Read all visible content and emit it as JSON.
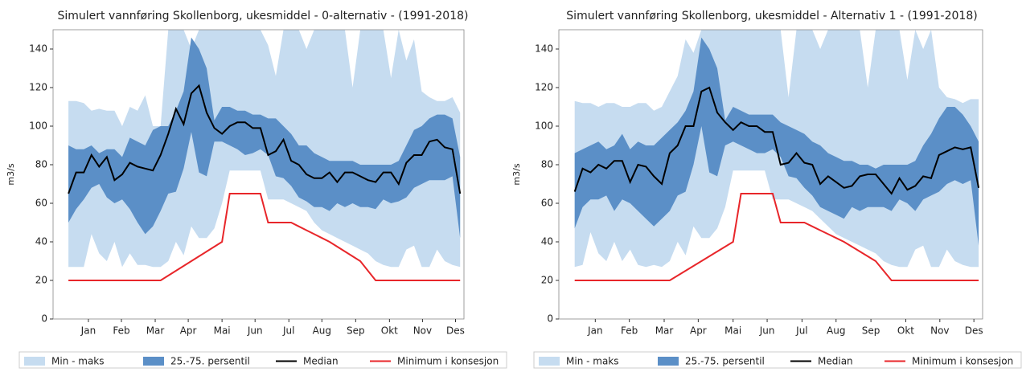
{
  "chart_data": [
    {
      "type": "band-line",
      "title": "Simulert vannføring Skollenborg, ukesmiddel - 0-alternativ - (1991-2018)",
      "y_label": "m3/s",
      "x": [
        1,
        2,
        3,
        4,
        5,
        6,
        7,
        8,
        9,
        10,
        11,
        12,
        13,
        14,
        15,
        16,
        17,
        18,
        19,
        20,
        21,
        22,
        23,
        24,
        25,
        26,
        27,
        28,
        29,
        30,
        31,
        32,
        33,
        34,
        35,
        36,
        37,
        38,
        39,
        40,
        41,
        42,
        43,
        44,
        45,
        46,
        47,
        48,
        49,
        50,
        51,
        52
      ],
      "xlim": [
        -1,
        52.5
      ],
      "ylim": [
        0,
        150
      ],
      "yticks": [
        0,
        20,
        40,
        60,
        80,
        100,
        120,
        140
      ],
      "xticks": [
        {
          "value": 3.6,
          "label": "Jan"
        },
        {
          "value": 7.9,
          "label": "Feb"
        },
        {
          "value": 12.3,
          "label": "Mar"
        },
        {
          "value": 16.6,
          "label": "Apr"
        },
        {
          "value": 21,
          "label": "Mai"
        },
        {
          "value": 25.3,
          "label": "Jun"
        },
        {
          "value": 29.7,
          "label": "Jul"
        },
        {
          "value": 34,
          "label": "Aug"
        },
        {
          "value": 38.4,
          "label": "Sep"
        },
        {
          "value": 42.8,
          "label": "Okt"
        },
        {
          "value": 47.1,
          "label": "Nov"
        },
        {
          "value": 51.4,
          "label": "Des"
        }
      ],
      "series": [
        {
          "name": "Min - maks",
          "type": "band",
          "color": "#c6dcf0",
          "lower": [
            27,
            27,
            27,
            44,
            34,
            30,
            40,
            27,
            34,
            28,
            28,
            27,
            27,
            30,
            40,
            33,
            48,
            42,
            42,
            47,
            60,
            77,
            77,
            77,
            77,
            77,
            62,
            62,
            62,
            60,
            58,
            56,
            50,
            46,
            44,
            42,
            40,
            38,
            36,
            34,
            30,
            28,
            27,
            27,
            36,
            38,
            27,
            27,
            36,
            30,
            28,
            27
          ],
          "upper": [
            113,
            113,
            112,
            108,
            109,
            108,
            108,
            100,
            110,
            108,
            116,
            100,
            100,
            150,
            150,
            150,
            140,
            150,
            150,
            150,
            150,
            150,
            150,
            150,
            150,
            150,
            142,
            126,
            150,
            150,
            150,
            140,
            150,
            150,
            150,
            150,
            150,
            120,
            150,
            150,
            150,
            150,
            125,
            150,
            134,
            145,
            118,
            115,
            113,
            113,
            115,
            107
          ]
        },
        {
          "name": "25.-75. persentil",
          "type": "band",
          "color": "#5b8fc7",
          "lower": [
            50,
            57,
            62,
            68,
            70,
            63,
            60,
            62,
            57,
            50,
            44,
            48,
            56,
            65,
            66,
            78,
            97,
            76,
            74,
            92,
            92,
            90,
            88,
            85,
            86,
            88,
            85,
            74,
            73,
            69,
            63,
            61,
            58,
            58,
            56,
            60,
            58,
            60,
            58,
            58,
            57,
            62,
            60,
            61,
            63,
            68,
            70,
            72,
            72,
            72,
            74,
            42
          ],
          "upper": [
            90,
            88,
            88,
            90,
            86,
            88,
            88,
            84,
            94,
            92,
            90,
            98,
            100,
            100,
            108,
            118,
            146,
            140,
            130,
            103,
            110,
            110,
            108,
            108,
            106,
            106,
            104,
            104,
            100,
            96,
            90,
            90,
            86,
            84,
            82,
            82,
            82,
            82,
            80,
            80,
            80,
            80,
            80,
            82,
            90,
            98,
            100,
            104,
            106,
            106,
            104,
            84
          ]
        },
        {
          "name": "Median",
          "type": "line",
          "color": "#000000",
          "values": [
            65,
            76,
            76,
            85,
            79,
            84,
            72,
            75,
            81,
            79,
            78,
            77,
            85,
            96,
            109,
            101,
            117,
            121,
            107,
            99,
            96,
            100,
            102,
            102,
            99,
            99,
            85,
            87,
            93,
            82,
            80,
            75,
            73,
            73,
            76,
            71,
            76,
            76,
            74,
            72,
            71,
            76,
            76,
            70,
            81,
            85,
            85,
            92,
            93,
            89,
            88,
            65
          ]
        },
        {
          "name": "Minimum i konsesjon",
          "type": "line",
          "color": "#e8262a",
          "values": [
            20,
            20,
            20,
            20,
            20,
            20,
            20,
            20,
            20,
            20,
            20,
            20,
            20,
            22.5,
            25,
            27.5,
            30,
            32.5,
            35,
            37.5,
            40,
            65,
            65,
            65,
            65,
            65,
            50,
            50,
            50,
            50,
            48,
            46,
            44,
            42,
            40,
            37.5,
            35,
            32.5,
            30,
            25,
            20,
            20,
            20,
            20,
            20,
            20,
            20,
            20,
            20,
            20,
            20,
            20
          ]
        }
      ]
    },
    {
      "type": "band-line",
      "title": "Simulert vannføring Skollenborg, ukesmiddel - Alternativ 1 - (1991-2018)",
      "y_label": "m3/s",
      "x": [
        1,
        2,
        3,
        4,
        5,
        6,
        7,
        8,
        9,
        10,
        11,
        12,
        13,
        14,
        15,
        16,
        17,
        18,
        19,
        20,
        21,
        22,
        23,
        24,
        25,
        26,
        27,
        28,
        29,
        30,
        31,
        32,
        33,
        34,
        35,
        36,
        37,
        38,
        39,
        40,
        41,
        42,
        43,
        44,
        45,
        46,
        47,
        48,
        49,
        50,
        51,
        52
      ],
      "xlim": [
        -1,
        52.5
      ],
      "ylim": [
        0,
        150
      ],
      "yticks": [
        0,
        20,
        40,
        60,
        80,
        100,
        120,
        140
      ],
      "xticks": [
        {
          "value": 3.6,
          "label": "Jan"
        },
        {
          "value": 7.9,
          "label": "Feb"
        },
        {
          "value": 12.3,
          "label": "Mar"
        },
        {
          "value": 16.6,
          "label": "Apr"
        },
        {
          "value": 21,
          "label": "Mai"
        },
        {
          "value": 25.3,
          "label": "Jun"
        },
        {
          "value": 29.7,
          "label": "Jul"
        },
        {
          "value": 34,
          "label": "Aug"
        },
        {
          "value": 38.4,
          "label": "Sep"
        },
        {
          "value": 42.8,
          "label": "Okt"
        },
        {
          "value": 47.1,
          "label": "Nov"
        },
        {
          "value": 51.4,
          "label": "Des"
        }
      ],
      "series": [
        {
          "name": "Min - maks",
          "type": "band",
          "color": "#c6dcf0",
          "lower": [
            27,
            28,
            45,
            34,
            30,
            40,
            30,
            36,
            28,
            27,
            28,
            27,
            30,
            40,
            33,
            48,
            42,
            42,
            47,
            58,
            77,
            77,
            77,
            77,
            77,
            62,
            62,
            62,
            60,
            58,
            56,
            52,
            48,
            44,
            42,
            40,
            38,
            36,
            34,
            30,
            28,
            27,
            27,
            36,
            38,
            27,
            27,
            36,
            30,
            28,
            27,
            27
          ],
          "upper": [
            113,
            112,
            112,
            110,
            112,
            112,
            110,
            110,
            112,
            112,
            108,
            110,
            118,
            126,
            145,
            138,
            150,
            150,
            150,
            150,
            150,
            150,
            150,
            150,
            150,
            150,
            150,
            115,
            150,
            150,
            150,
            140,
            150,
            150,
            150,
            150,
            150,
            120,
            150,
            150,
            150,
            150,
            124,
            150,
            140,
            150,
            120,
            115,
            114,
            112,
            114,
            114
          ]
        },
        {
          "name": "25.-75. persentil",
          "type": "band",
          "color": "#5b8fc7",
          "lower": [
            47,
            58,
            62,
            62,
            64,
            56,
            62,
            60,
            56,
            52,
            48,
            52,
            56,
            64,
            66,
            80,
            100,
            76,
            74,
            90,
            92,
            90,
            88,
            86,
            86,
            88,
            84,
            74,
            73,
            68,
            64,
            58,
            56,
            54,
            52,
            58,
            56,
            58,
            58,
            58,
            56,
            62,
            60,
            56,
            62,
            64,
            66,
            70,
            72,
            70,
            72,
            38
          ],
          "upper": [
            86,
            88,
            90,
            92,
            88,
            90,
            96,
            88,
            92,
            90,
            90,
            94,
            98,
            102,
            108,
            118,
            146,
            140,
            130,
            103,
            110,
            108,
            106,
            106,
            106,
            106,
            102,
            100,
            98,
            96,
            92,
            90,
            86,
            84,
            82,
            82,
            80,
            80,
            78,
            80,
            80,
            80,
            80,
            82,
            90,
            96,
            104,
            110,
            110,
            106,
            100,
            92
          ]
        },
        {
          "name": "Median",
          "type": "line",
          "color": "#000000",
          "values": [
            66,
            78,
            76,
            80,
            78,
            82,
            82,
            71,
            80,
            79,
            74,
            70,
            86,
            90,
            100,
            100,
            118,
            120,
            107,
            102,
            98,
            102,
            100,
            100,
            97,
            97,
            80,
            81,
            86,
            81,
            80,
            70,
            74,
            71,
            68,
            69,
            74,
            75,
            75,
            70,
            65,
            73,
            67,
            69,
            74,
            73,
            85,
            87,
            89,
            88,
            89,
            68
          ]
        },
        {
          "name": "Minimum i konsesjon",
          "type": "line",
          "color": "#e8262a",
          "values": [
            20,
            20,
            20,
            20,
            20,
            20,
            20,
            20,
            20,
            20,
            20,
            20,
            20,
            22.5,
            25,
            27.5,
            30,
            32.5,
            35,
            37.5,
            40,
            65,
            65,
            65,
            65,
            65,
            50,
            50,
            50,
            50,
            48,
            46,
            44,
            42,
            40,
            37.5,
            35,
            32.5,
            30,
            25,
            20,
            20,
            20,
            20,
            20,
            20,
            20,
            20,
            20,
            20,
            20,
            20
          ]
        }
      ]
    }
  ]
}
